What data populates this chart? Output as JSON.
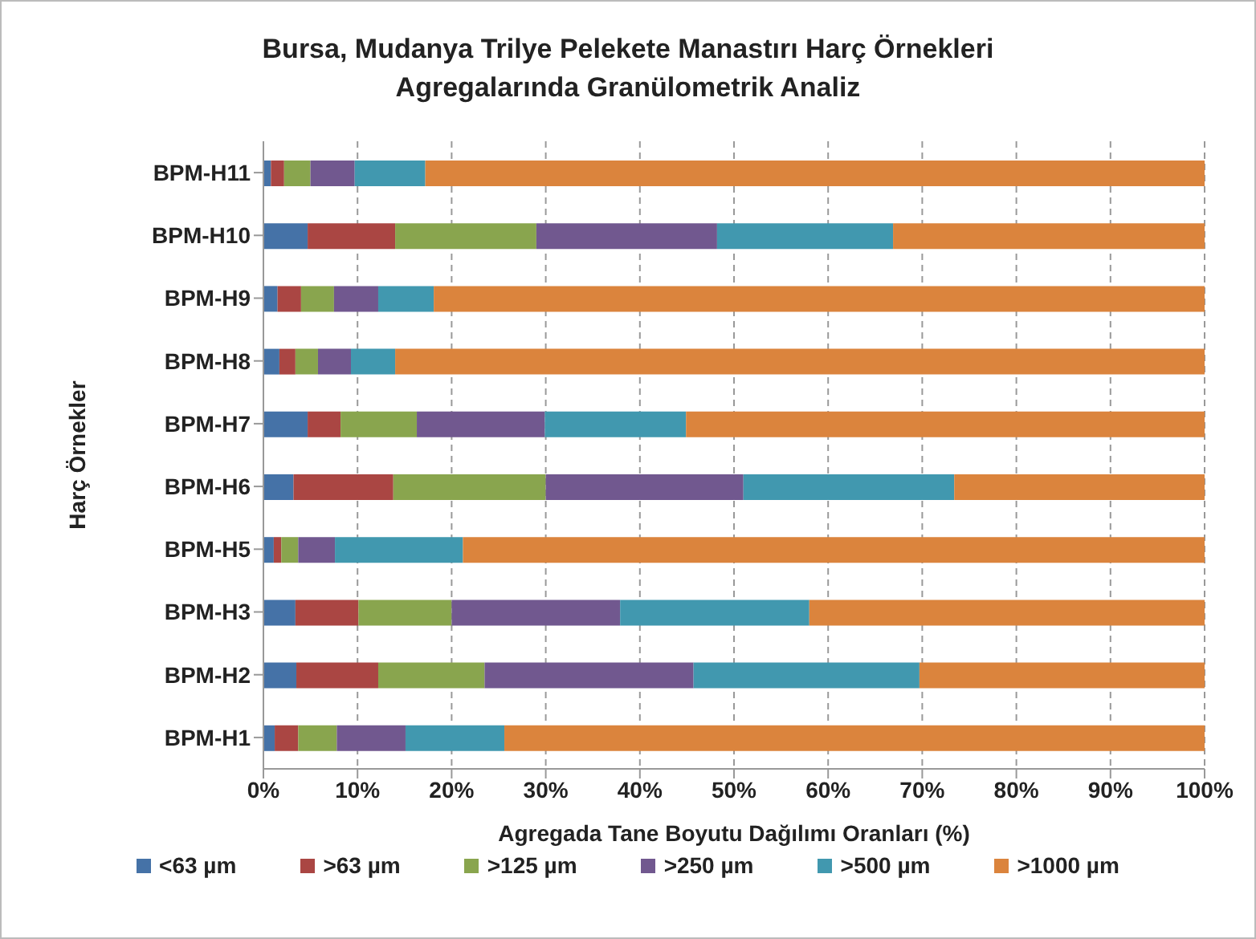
{
  "chart_data": {
    "type": "bar",
    "orientation": "horizontal",
    "stacked": true,
    "title": "Bursa, Mudanya Trilye Pelekete Manastırı Harç Örnekleri\nAgregalarında Granülometrik Analiz",
    "xlabel": "Agregada Tane Boyutu Dağılımı Oranları (%)",
    "ylabel": "Harç Örnekler",
    "categories": [
      "BPM-H11",
      "BPM-H10",
      "BPM-H9",
      "BPM-H8",
      "BPM-H7",
      "BPM-H6",
      "BPM-H5",
      "BPM-H3",
      "BPM-H2",
      "BPM-H1"
    ],
    "series": [
      {
        "name": "<63 µm",
        "color": "#4572a7",
        "values": [
          0.8,
          4.7,
          1.5,
          1.7,
          4.7,
          3.2,
          1.1,
          3.4,
          3.5,
          1.2
        ]
      },
      {
        "name": ">63 µm",
        "color": "#aa4643",
        "values": [
          1.4,
          9.3,
          2.5,
          1.7,
          3.5,
          10.6,
          0.8,
          6.7,
          8.7,
          2.5
        ]
      },
      {
        "name": ">125 µm",
        "color": "#89a54e",
        "values": [
          2.8,
          15.0,
          3.5,
          2.4,
          8.1,
          16.2,
          1.8,
          9.9,
          11.3,
          4.1
        ]
      },
      {
        "name": ">250 µm",
        "color": "#71588f",
        "values": [
          4.7,
          19.2,
          4.7,
          3.5,
          13.6,
          21.0,
          3.9,
          17.9,
          22.2,
          7.3
        ]
      },
      {
        "name": ">500 µm",
        "color": "#4198af",
        "values": [
          7.5,
          18.7,
          5.9,
          4.7,
          15.0,
          22.4,
          13.6,
          20.1,
          24.0,
          10.5
        ]
      },
      {
        "name": ">1000 µm",
        "color": "#db843d",
        "values": [
          82.8,
          33.1,
          81.9,
          86.0,
          55.1,
          26.6,
          78.8,
          42.0,
          30.3,
          74.4
        ]
      }
    ],
    "xlim": [
      0,
      100
    ],
    "xticks": [
      {
        "value": 0,
        "label": "0%"
      },
      {
        "value": 10,
        "label": "10%"
      },
      {
        "value": 20,
        "label": "20%"
      },
      {
        "value": 30,
        "label": "30%"
      },
      {
        "value": 40,
        "label": "40%"
      },
      {
        "value": 50,
        "label": "50%"
      },
      {
        "value": 60,
        "label": "60%"
      },
      {
        "value": 70,
        "label": "70%"
      },
      {
        "value": 80,
        "label": "80%"
      },
      {
        "value": 90,
        "label": "90%"
      },
      {
        "value": 100,
        "label": "100%"
      }
    ],
    "grid": "x",
    "legend": "bottom"
  }
}
